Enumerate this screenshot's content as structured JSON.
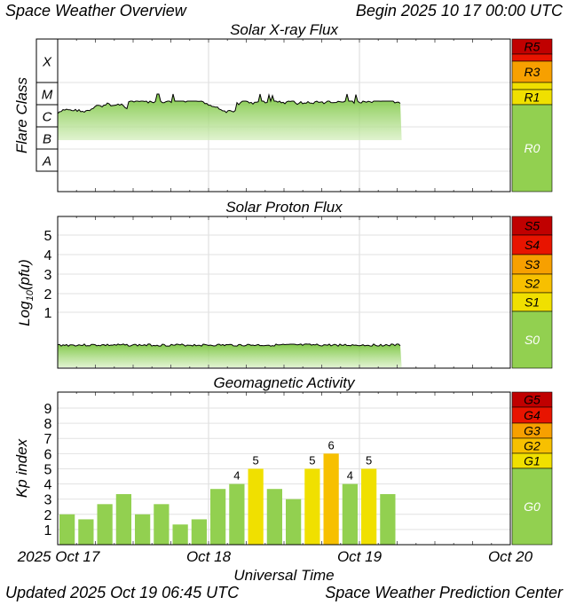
{
  "header": {
    "title": "Space Weather Overview",
    "begin": "Begin 2025 10 17 00:00 UTC"
  },
  "footer": {
    "updated": "Updated 2025 Oct 19 06:45 UTC",
    "org": "Space Weather Prediction Center"
  },
  "x_axis": {
    "label": "Universal Time",
    "ticks": [
      "2025 Oct 17",
      "Oct 18",
      "Oct 19",
      "Oct 20"
    ]
  },
  "colors": {
    "green": "#92d050",
    "yellow": "#f0e000",
    "orange": "#f7a000",
    "red": "#e81400",
    "darkred": "#c00000"
  },
  "chart_data": [
    {
      "type": "area",
      "title": "Solar X-ray Flux",
      "ylabel": "Flare Class",
      "y_classes": [
        "X",
        "M",
        "C",
        "B",
        "A"
      ],
      "scale_labels": [
        {
          "label": "R5",
          "color": "#c00000"
        },
        {
          "label": "",
          "color": "#e81400"
        },
        {
          "label": "R3",
          "color": "#f7a000"
        },
        {
          "label": "",
          "color": "#f0e000"
        },
        {
          "label": "R1",
          "color": "#f0e000"
        },
        {
          "label": "R0",
          "color": "#92d050"
        }
      ],
      "series_level": "C",
      "x_range_days": [
        0,
        3
      ],
      "data_end_day": 2.28
    },
    {
      "type": "area",
      "title": "Solar Proton Flux",
      "ylabel": "Log10(pfu)",
      "ylabel_main": "Log",
      "ylabel_sub": "10",
      "ylabel_tail": "(pfu)",
      "y_ticks": [
        1,
        2,
        3,
        4,
        5
      ],
      "scale_labels": [
        {
          "label": "S5",
          "color": "#c00000"
        },
        {
          "label": "S4",
          "color": "#e81400"
        },
        {
          "label": "S3",
          "color": "#f7a000"
        },
        {
          "label": "S2",
          "color": "#f7c000"
        },
        {
          "label": "S1",
          "color": "#f0e000"
        },
        {
          "label": "S0",
          "color": "#92d050"
        }
      ],
      "x_range_days": [
        0,
        3
      ],
      "data_end_day": 2.28
    },
    {
      "type": "bar",
      "title": "Geomagnetic Activity",
      "ylabel": "Kp index",
      "ylim": [
        0,
        9
      ],
      "y_ticks": [
        1,
        2,
        3,
        4,
        5,
        6,
        7,
        8,
        9
      ],
      "scale_labels": [
        {
          "label": "G5",
          "color": "#c00000"
        },
        {
          "label": "G4",
          "color": "#e81400"
        },
        {
          "label": "G3",
          "color": "#f7a000"
        },
        {
          "label": "G2",
          "color": "#f7c000"
        },
        {
          "label": "G1",
          "color": "#f0e000"
        },
        {
          "label": "G0",
          "color": "#92d050"
        }
      ],
      "kp_values": [
        2.0,
        1.67,
        2.67,
        3.33,
        2.0,
        2.67,
        1.33,
        1.67,
        3.67,
        4.0,
        5.0,
        3.67,
        3.0,
        5.0,
        6.0,
        4.0,
        5.0,
        3.33
      ],
      "bar_labels": [
        "",
        "",
        "",
        "",
        "",
        "",
        "",
        "",
        "",
        "4",
        "5",
        "",
        "",
        "5",
        "6",
        "4",
        "5",
        ""
      ],
      "bar_colors": [
        "#92d050",
        "#92d050",
        "#92d050",
        "#92d050",
        "#92d050",
        "#92d050",
        "#92d050",
        "#92d050",
        "#92d050",
        "#92d050",
        "#f0e000",
        "#92d050",
        "#92d050",
        "#f0e000",
        "#f7c000",
        "#92d050",
        "#f0e000",
        "#92d050"
      ]
    }
  ]
}
